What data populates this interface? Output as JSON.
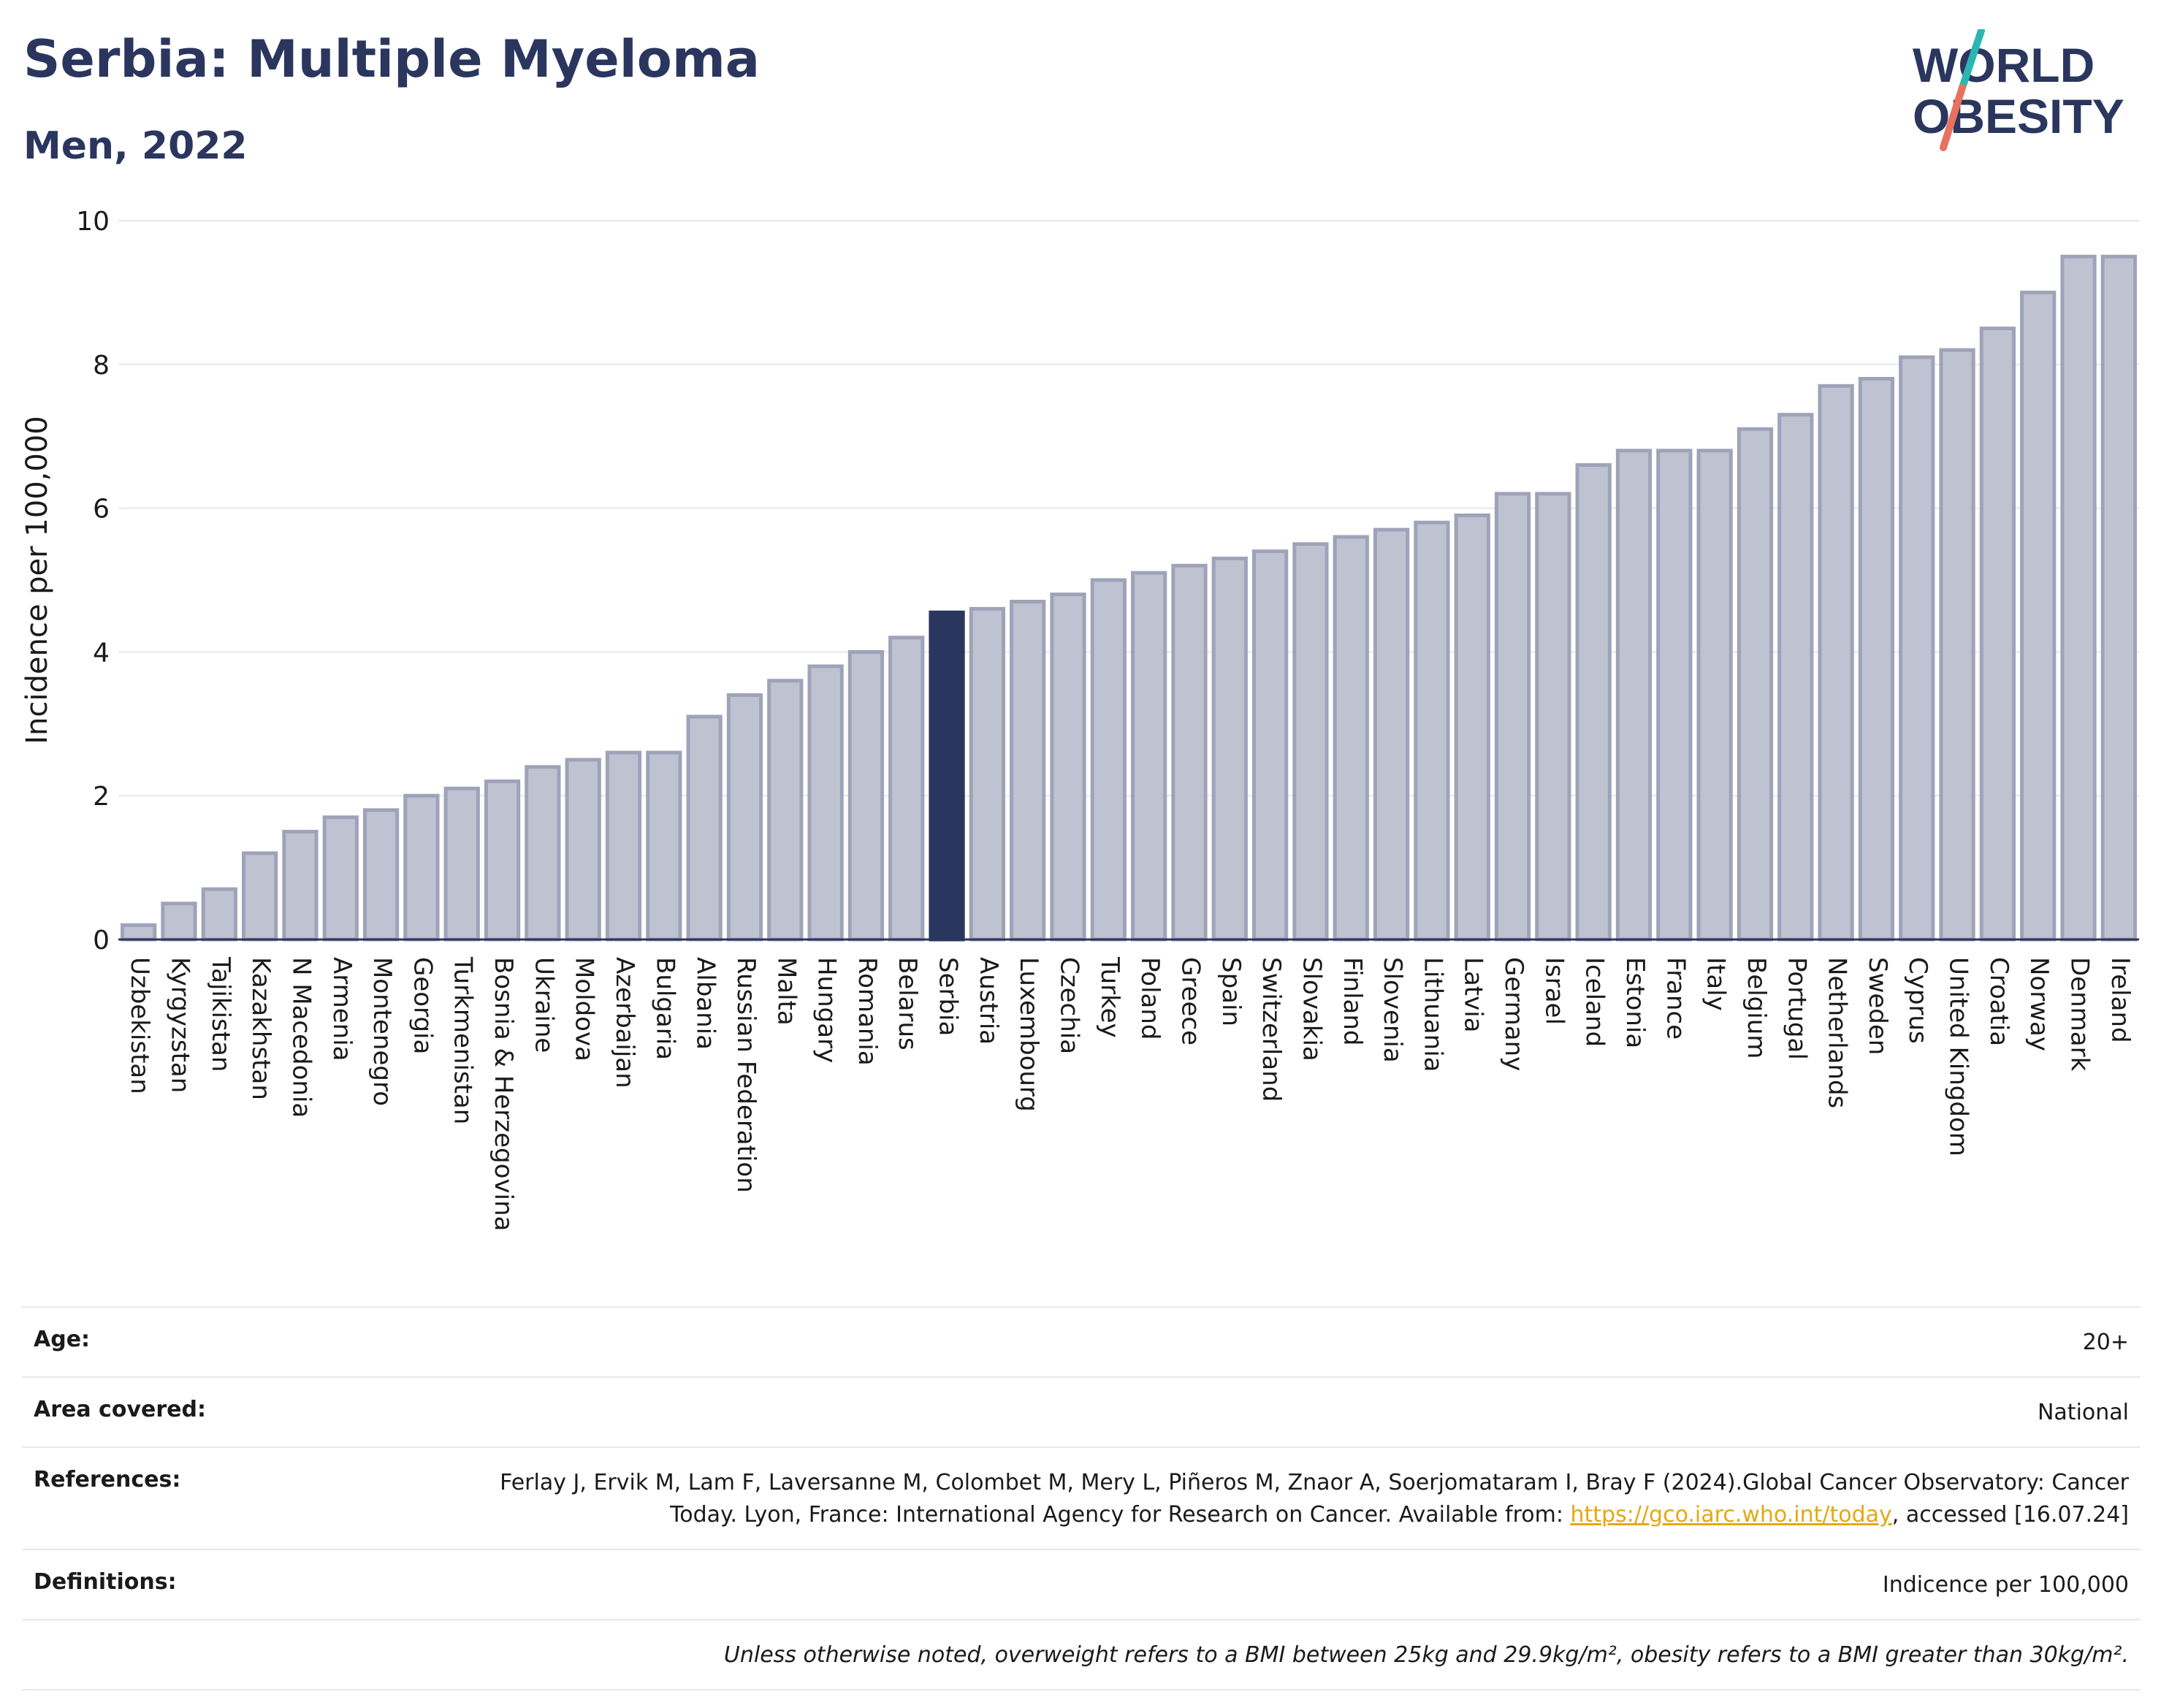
{
  "title": "Serbia: Multiple Myeloma",
  "subtitle": "Men, 2022",
  "logo": {
    "line1": "WORLD",
    "line2": "OBESITY"
  },
  "colors": {
    "highlight": "#2b365e",
    "bar_fill": "#bfc3d1",
    "bar_edge": "#9ea3b9",
    "title": "#2b365e",
    "logo_slash_top": "#2ab7b2",
    "logo_slash_bottom": "#e8715f"
  },
  "chart_data": {
    "type": "bar",
    "ylabel": "Incidence per 100,000",
    "ylim": [
      0,
      10
    ],
    "yticks": [
      "0",
      "2",
      "4",
      "6",
      "8",
      "10"
    ],
    "highlight": "Serbia",
    "categories": [
      "Uzbekistan",
      "Kyrgyzstan",
      "Tajikistan",
      "Kazakhstan",
      "N Macedonia",
      "Armenia",
      "Montenegro",
      "Georgia",
      "Turkmenistan",
      "Bosnia & Herzegovina",
      "Ukraine",
      "Moldova",
      "Azerbaijan",
      "Bulgaria",
      "Albania",
      "Russian Federation",
      "Malta",
      "Hungary",
      "Romania",
      "Belarus",
      "Serbia",
      "Austria",
      "Luxembourg",
      "Czechia",
      "Turkey",
      "Poland",
      "Greece",
      "Spain",
      "Switzerland",
      "Slovakia",
      "Finland",
      "Slovenia",
      "Lithuania",
      "Latvia",
      "Germany",
      "Israel",
      "Iceland",
      "Estonia",
      "France",
      "Italy",
      "Belgium",
      "Portugal",
      "Netherlands",
      "Sweden",
      "Cyprus",
      "United Kingdom",
      "Croatia",
      "Norway",
      "Denmark",
      "Ireland"
    ],
    "values": [
      0.2,
      0.5,
      0.7,
      1.2,
      1.5,
      1.7,
      1.8,
      2.0,
      2.1,
      2.2,
      2.4,
      2.5,
      2.6,
      2.6,
      3.1,
      3.4,
      3.6,
      3.8,
      4.0,
      4.2,
      4.55,
      4.6,
      4.7,
      4.8,
      5.0,
      5.1,
      5.2,
      5.3,
      5.4,
      5.5,
      5.6,
      5.7,
      5.8,
      5.9,
      6.2,
      6.2,
      6.6,
      6.8,
      6.8,
      6.8,
      7.1,
      7.3,
      7.7,
      7.8,
      8.1,
      8.2,
      8.5,
      9.0,
      9.5,
      9.5
    ],
    "grid": true
  },
  "meta": {
    "age_label": "Age:",
    "age_value": "20+",
    "area_label": "Area covered:",
    "area_value": "National",
    "references_label": "References:",
    "references_text_1": "Ferlay J, Ervik M, Lam F, Laversanne M, Colombet M, Mery L, Piñeros M, Znaor A, Soerjomataram I, Bray F (2024).Global Cancer Observatory: Cancer Today. Lyon, France: International Agency for Research on Cancer. Available from: ",
    "references_link": "https://gco.iarc.who.int/today",
    "references_text_2": ", accessed [16.07.24]",
    "definitions_label": "Definitions:",
    "definitions_value": "Indicence per 100,000",
    "note": "Unless otherwise noted, overweight refers to a BMI between 25kg and 29.9kg/m², obesity refers to a BMI greater than 30kg/m²."
  }
}
